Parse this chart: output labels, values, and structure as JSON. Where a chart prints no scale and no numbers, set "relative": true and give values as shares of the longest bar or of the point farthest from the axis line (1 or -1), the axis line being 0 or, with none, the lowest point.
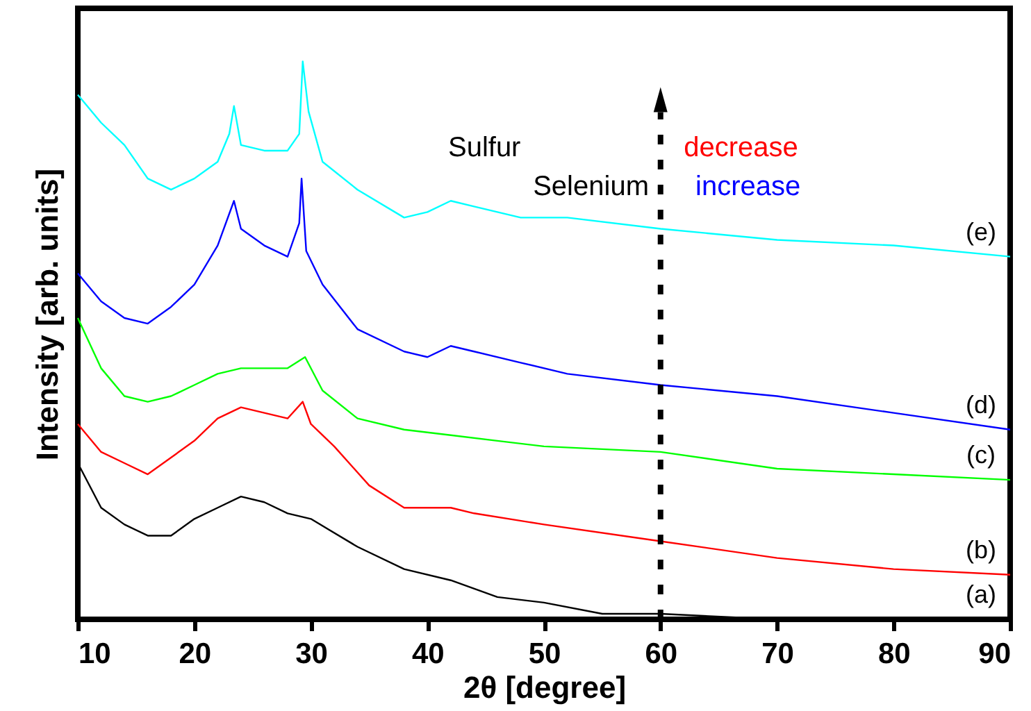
{
  "chart_data": {
    "type": "line",
    "relative": true,
    "xlabel": "2θ  [degree]",
    "ylabel": "Intensity [arb. units]",
    "xlim": [
      10,
      90
    ],
    "xticks": [
      10,
      20,
      30,
      40,
      50,
      60,
      70,
      80,
      90
    ],
    "legend": false,
    "marker": "none",
    "grid": false,
    "ref_lines": [
      {
        "axis": "x",
        "value": 60,
        "line_style": "dashed"
      }
    ],
    "annotations": [
      "Sulfur",
      "decrease",
      "Selenium",
      "increase"
    ],
    "series": [
      {
        "name": "(a)",
        "color": "#000000",
        "x": [
          10,
          12,
          14,
          16,
          18,
          20,
          22,
          24,
          26,
          28,
          30,
          34,
          38,
          42,
          46,
          50,
          55,
          60,
          70,
          80,
          90
        ],
        "values": [
          0.28,
          0.2,
          0.17,
          0.15,
          0.15,
          0.18,
          0.2,
          0.22,
          0.21,
          0.19,
          0.18,
          0.13,
          0.09,
          0.07,
          0.04,
          0.03,
          0.01,
          0.01,
          0,
          0,
          0
        ]
      },
      {
        "name": "(b)",
        "color": "#ff0000",
        "x": [
          10,
          12,
          14,
          16,
          18,
          20,
          22,
          24,
          26,
          28,
          29.3,
          30,
          32,
          35,
          38,
          42,
          44,
          50,
          60,
          70,
          80,
          90
        ],
        "values": [
          0.35,
          0.3,
          0.28,
          0.26,
          0.29,
          0.32,
          0.36,
          0.38,
          0.37,
          0.36,
          0.39,
          0.35,
          0.31,
          0.24,
          0.2,
          0.2,
          0.19,
          0.17,
          0.14,
          0.11,
          0.09,
          0.08
        ]
      },
      {
        "name": "(c)",
        "color": "#00ff00",
        "x": [
          10,
          12,
          14,
          16,
          18,
          20,
          22,
          24,
          26,
          28,
          29.5,
          31,
          34,
          38,
          42,
          46,
          50,
          60,
          70,
          80,
          90
        ],
        "values": [
          0.54,
          0.45,
          0.4,
          0.39,
          0.4,
          0.42,
          0.44,
          0.45,
          0.45,
          0.45,
          0.47,
          0.41,
          0.36,
          0.34,
          0.33,
          0.32,
          0.31,
          0.3,
          0.27,
          0.26,
          0.25
        ]
      },
      {
        "name": "(d)",
        "color": "#0000ff",
        "x": [
          10,
          12,
          14,
          16,
          18,
          20,
          22,
          23.4,
          24,
          26,
          28,
          29,
          29.2,
          29.6,
          31,
          34,
          38,
          40,
          42,
          44,
          48,
          52,
          60,
          70,
          80,
          90
        ],
        "values": [
          0.62,
          0.57,
          0.54,
          0.53,
          0.56,
          0.6,
          0.67,
          0.75,
          0.7,
          0.67,
          0.65,
          0.71,
          0.79,
          0.66,
          0.6,
          0.52,
          0.48,
          0.47,
          0.49,
          0.48,
          0.46,
          0.44,
          0.42,
          0.4,
          0.37,
          0.34
        ]
      },
      {
        "name": "(e)",
        "color": "#00ffff",
        "x": [
          10,
          12,
          14,
          16,
          18,
          20,
          22,
          23,
          23.4,
          24,
          26,
          28,
          29,
          29.3,
          29.8,
          31,
          34,
          38,
          40,
          42,
          44,
          48,
          52,
          60,
          70,
          80,
          90
        ],
        "values": [
          0.94,
          0.89,
          0.85,
          0.79,
          0.77,
          0.79,
          0.82,
          0.87,
          0.92,
          0.85,
          0.84,
          0.84,
          0.87,
          1.0,
          0.91,
          0.82,
          0.77,
          0.72,
          0.73,
          0.75,
          0.74,
          0.72,
          0.72,
          0.7,
          0.68,
          0.67,
          0.65
        ]
      }
    ]
  }
}
